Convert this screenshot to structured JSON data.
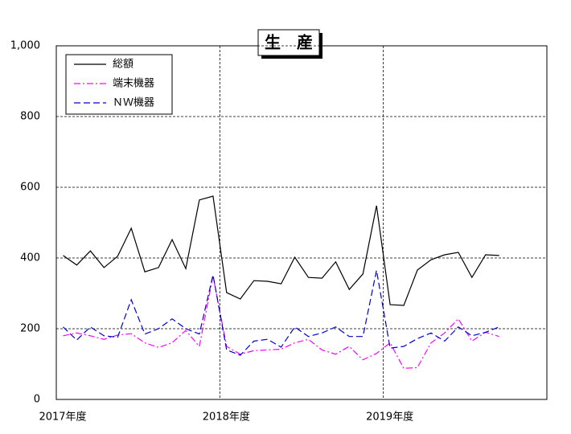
{
  "chart_data": {
    "type": "line",
    "title": "生　産",
    "x": [
      0.5,
      1.5,
      2.5,
      3.5,
      4.5,
      5.5,
      6.5,
      7.5,
      8.5,
      9.5,
      10.5,
      11.5,
      12.5,
      13.5,
      14.5,
      15.5,
      16.5,
      17.5,
      18.5,
      19.5,
      20.5,
      21.5,
      22.5,
      23.5,
      24.5,
      25.5,
      26.5,
      27.5,
      28.5,
      29.5,
      30.5,
      31.5,
      32.5
    ],
    "xlim": [
      0,
      36
    ],
    "xticks": [
      {
        "value": 0,
        "label": "2017年度"
      },
      {
        "value": 12,
        "label": "2018年度"
      },
      {
        "value": 24,
        "label": "2019年度"
      }
    ],
    "ylim": [
      0,
      1000
    ],
    "yticks": [
      0,
      200,
      400,
      600,
      800,
      {
        "value": 1000,
        "label": "1,000"
      }
    ],
    "grid": true,
    "legend": "top-left",
    "series": [
      {
        "name": "総額",
        "color": "#000000",
        "dash": "solid",
        "values": [
          407,
          380,
          420,
          373,
          405,
          484,
          361,
          373,
          452,
          370,
          564,
          575,
          302,
          284,
          336,
          334,
          327,
          402,
          345,
          343,
          389,
          311,
          355,
          548,
          268,
          266,
          366,
          395,
          409,
          416,
          345,
          409,
          407
        ]
      },
      {
        "name": "端末機器",
        "color": "#ff00ff",
        "dash": "dashdot",
        "values": [
          180,
          188,
          180,
          170,
          182,
          186,
          160,
          147,
          160,
          195,
          150,
          350,
          150,
          128,
          138,
          140,
          142,
          160,
          170,
          140,
          128,
          150,
          112,
          130,
          160,
          88,
          90,
          160,
          188,
          228,
          165,
          190,
          178
        ]
      },
      {
        "name": "ＮＷ機器",
        "color": "#0000cc",
        "dash": "dash",
        "values": [
          205,
          168,
          205,
          180,
          176,
          282,
          185,
          200,
          228,
          200,
          185,
          352,
          140,
          125,
          165,
          170,
          148,
          205,
          178,
          188,
          205,
          178,
          178,
          365,
          145,
          150,
          172,
          188,
          165,
          205,
          180,
          190,
          205
        ]
      }
    ]
  }
}
